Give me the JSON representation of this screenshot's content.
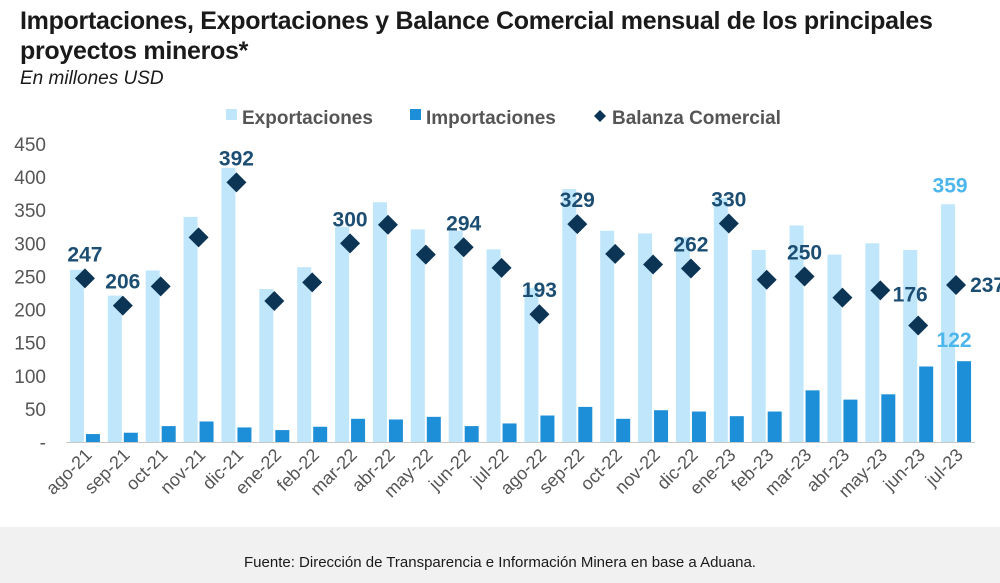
{
  "header": {
    "title": "Importaciones, Exportaciones y Balance Comercial mensual de los principales proyectos mineros*",
    "subtitle": "En millones  USD"
  },
  "footer": {
    "source": "Fuente: Dirección de Transparencia e Información Minera en base a Aduana."
  },
  "colors": {
    "exportaciones": "#bfe6fb",
    "importaciones": "#1c8fd8",
    "balanza": "#0c3555",
    "label_dark": "#1c4d72",
    "label_highlight": "#4db6ec",
    "axis_text": "#555555"
  },
  "chart_data": {
    "type": "bar",
    "title": "Importaciones, Exportaciones y Balance Comercial mensual de los principales proyectos mineros*",
    "ylabel": "En millones  USD",
    "ylim": [
      0,
      450
    ],
    "yticks": [
      0,
      50,
      100,
      150,
      200,
      250,
      300,
      350,
      400,
      450
    ],
    "ytick_labels": [
      "-",
      "50",
      "100",
      "150",
      "200",
      "250",
      "300",
      "350",
      "400",
      "450"
    ],
    "legend_position": "top-center",
    "grid": false,
    "categories": [
      "ago-21",
      "sep-21",
      "oct-21",
      "nov-21",
      "dic-21",
      "ene-22",
      "feb-22",
      "mar-22",
      "abr-22",
      "may-22",
      "jun-22",
      "jul-22",
      "ago-22",
      "sep-22",
      "oct-22",
      "nov-22",
      "dic-22",
      "ene-23",
      "feb-23",
      "mar-23",
      "abr-23",
      "may-23",
      "jun-23",
      "jul-23"
    ],
    "series": [
      {
        "name": "Exportaciones",
        "type": "bar",
        "values": [
          260,
          221,
          259,
          340,
          414,
          231,
          264,
          325,
          362,
          321,
          319,
          291,
          233,
          382,
          319,
          315,
          309,
          369,
          290,
          327,
          283,
          300,
          290,
          359
        ]
      },
      {
        "name": "Importaciones",
        "type": "bar",
        "values": [
          12,
          14,
          24,
          31,
          22,
          18,
          23,
          35,
          34,
          38,
          24,
          28,
          40,
          53,
          35,
          48,
          46,
          39,
          46,
          78,
          64,
          72,
          114,
          122
        ]
      },
      {
        "name": "Balanza Comercial",
        "type": "scatter",
        "values": [
          247,
          206,
          235,
          309,
          392,
          213,
          241,
          300,
          328,
          283,
          294,
          263,
          193,
          329,
          284,
          268,
          262,
          330,
          245,
          250,
          218,
          229,
          176,
          237
        ]
      }
    ],
    "data_labels": [
      {
        "category": "ago-21",
        "value": "247",
        "series": "Balanza Comercial"
      },
      {
        "category": "sep-21",
        "value": "206",
        "series": "Balanza Comercial"
      },
      {
        "category": "dic-21",
        "value": "392",
        "series": "Balanza Comercial"
      },
      {
        "category": "mar-22",
        "value": "300",
        "series": "Balanza Comercial"
      },
      {
        "category": "jun-22",
        "value": "294",
        "series": "Balanza Comercial"
      },
      {
        "category": "ago-22",
        "value": "193",
        "series": "Balanza Comercial"
      },
      {
        "category": "sep-22",
        "value": "329",
        "series": "Balanza Comercial"
      },
      {
        "category": "dic-22",
        "value": "262",
        "series": "Balanza Comercial"
      },
      {
        "category": "ene-23",
        "value": "330",
        "series": "Balanza Comercial"
      },
      {
        "category": "mar-23",
        "value": "250",
        "series": "Balanza Comercial"
      },
      {
        "category": "jun-23",
        "value": "176",
        "series": "Balanza Comercial"
      },
      {
        "category": "jul-23",
        "value": "237",
        "series": "Balanza Comercial"
      },
      {
        "category": "jul-23",
        "value": "359",
        "series": "Exportaciones"
      },
      {
        "category": "jul-23",
        "value": "122",
        "series": "Importaciones"
      }
    ]
  }
}
